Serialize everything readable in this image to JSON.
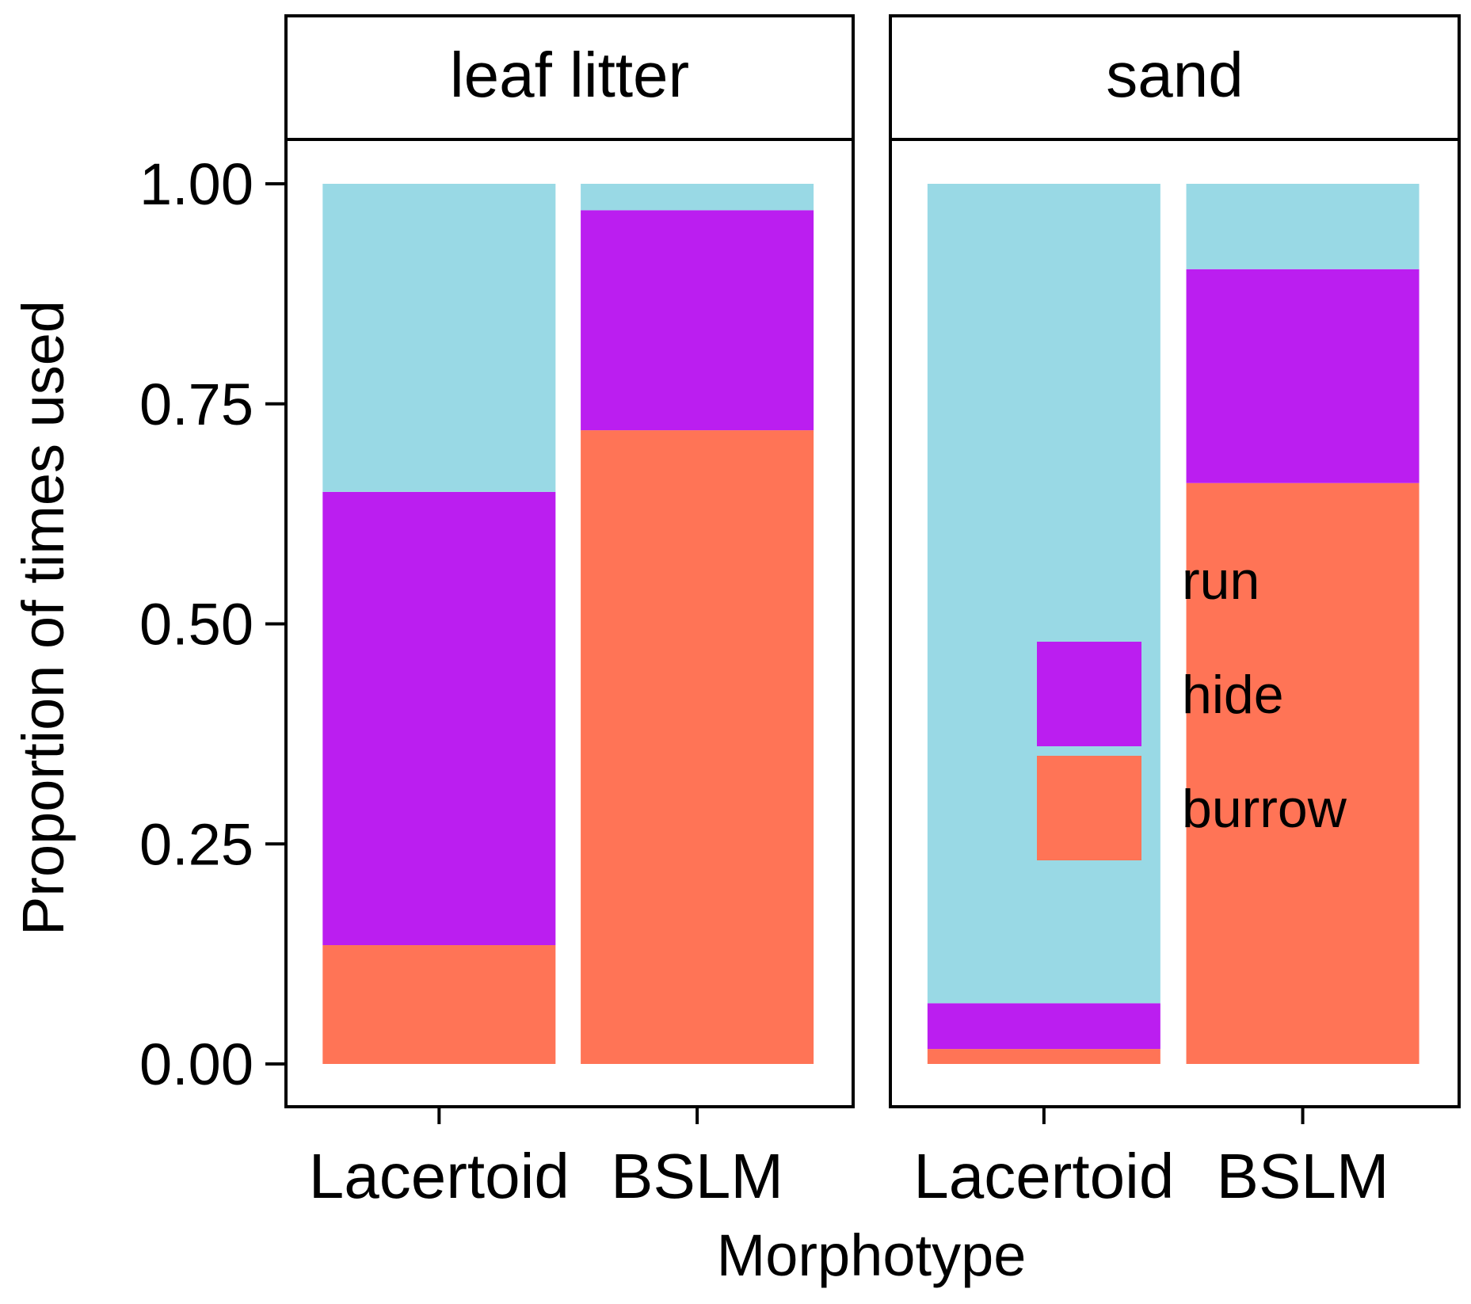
{
  "chart_data": {
    "type": "bar",
    "stacked": true,
    "ylabel": "Proportion of times used",
    "xlabel": "Morphotype",
    "ylim": [
      0,
      1
    ],
    "yticks": [
      "0.00",
      "0.25",
      "0.50",
      "0.75",
      "1.00"
    ],
    "ytick_values": [
      0,
      0.25,
      0.5,
      0.75,
      1.0
    ],
    "categories": [
      "Lacertoid",
      "BSLM"
    ],
    "legend": {
      "position": "inside-right",
      "entries": [
        {
          "label": "run",
          "color": "#99D9E5"
        },
        {
          "label": "hide",
          "color": "#BB1EF0"
        },
        {
          "label": "burrow",
          "color": "#FF7456"
        }
      ]
    },
    "panels": [
      {
        "title": "leaf litter",
        "series": [
          {
            "name": "burrow",
            "values": [
              0.135,
              0.72
            ]
          },
          {
            "name": "hide",
            "values": [
              0.515,
              0.25
            ]
          },
          {
            "name": "run",
            "values": [
              0.35,
              0.03
            ]
          }
        ]
      },
      {
        "title": "sand",
        "series": [
          {
            "name": "burrow",
            "values": [
              0.017,
              0.66
            ]
          },
          {
            "name": "hide",
            "values": [
              0.052,
              0.243
            ]
          },
          {
            "name": "run",
            "values": [
              0.931,
              0.097
            ]
          }
        ]
      }
    ]
  }
}
